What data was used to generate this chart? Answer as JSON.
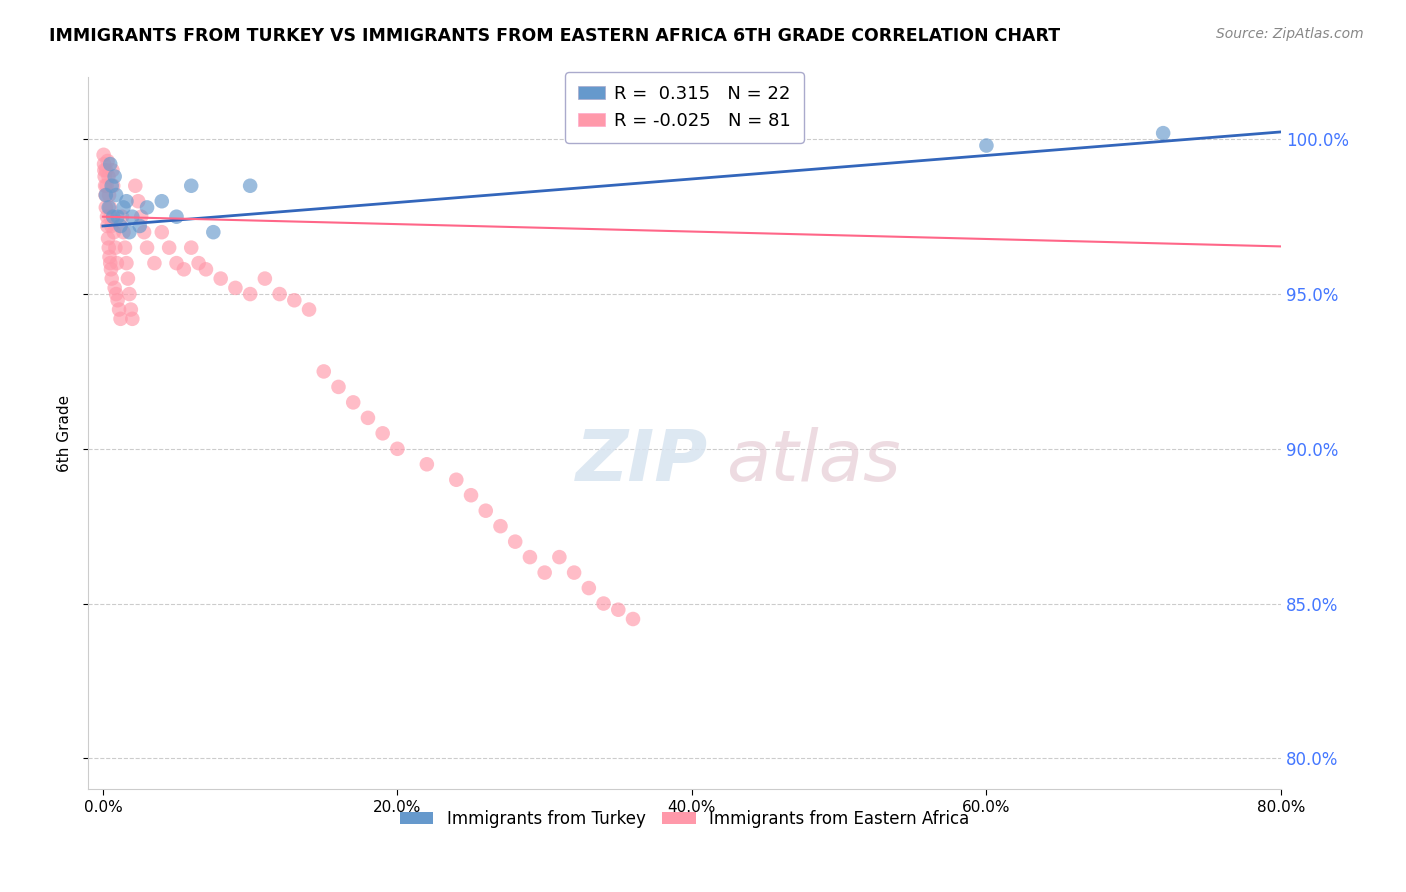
{
  "title": "IMMIGRANTS FROM TURKEY VS IMMIGRANTS FROM EASTERN AFRICA 6TH GRADE CORRELATION CHART",
  "source": "Source: ZipAtlas.com",
  "ylabel": "6th Grade",
  "x_tick_labels": [
    "0.0%",
    "20.0%",
    "40.0%",
    "60.0%",
    "80.0%"
  ],
  "x_tick_values": [
    0.0,
    20.0,
    40.0,
    60.0,
    80.0
  ],
  "y_tick_labels": [
    "80.0%",
    "85.0%",
    "90.0%",
    "95.0%",
    "100.0%"
  ],
  "y_tick_values": [
    80.0,
    85.0,
    90.0,
    95.0,
    100.0
  ],
  "xlim": [
    -1.0,
    80.0
  ],
  "ylim": [
    79.0,
    102.0
  ],
  "blue_color": "#6699CC",
  "pink_color": "#FF99AA",
  "blue_line_color": "#3366BB",
  "pink_line_color": "#FF6688",
  "legend_R_blue": "0.315",
  "legend_N_blue": "22",
  "legend_R_pink": "-0.025",
  "legend_N_pink": "81",
  "legend_label_blue": "Immigrants from Turkey",
  "legend_label_pink": "Immigrants from Eastern Africa",
  "watermark_zip": "ZIP",
  "watermark_atlas": "atlas",
  "blue_x": [
    0.2,
    0.4,
    0.5,
    0.6,
    0.7,
    0.8,
    0.9,
    1.0,
    1.2,
    1.4,
    1.6,
    1.8,
    2.0,
    2.5,
    3.0,
    4.0,
    5.0,
    6.0,
    7.5,
    10.0,
    60.0,
    72.0
  ],
  "blue_y": [
    98.2,
    97.8,
    99.2,
    98.5,
    97.5,
    98.8,
    98.2,
    97.5,
    97.2,
    97.8,
    98.0,
    97.0,
    97.5,
    97.2,
    97.8,
    98.0,
    97.5,
    98.5,
    97.0,
    98.5,
    99.8,
    100.2
  ],
  "pink_x": [
    0.05,
    0.08,
    0.1,
    0.12,
    0.15,
    0.18,
    0.2,
    0.22,
    0.25,
    0.28,
    0.3,
    0.32,
    0.35,
    0.38,
    0.4,
    0.42,
    0.45,
    0.48,
    0.5,
    0.52,
    0.55,
    0.58,
    0.6,
    0.65,
    0.7,
    0.75,
    0.8,
    0.85,
    0.9,
    0.95,
    1.0,
    1.1,
    1.2,
    1.3,
    1.4,
    1.5,
    1.6,
    1.7,
    1.8,
    1.9,
    2.0,
    2.2,
    2.4,
    2.6,
    2.8,
    3.0,
    3.5,
    4.0,
    4.5,
    5.0,
    5.5,
    6.0,
    6.5,
    7.0,
    8.0,
    9.0,
    10.0,
    11.0,
    12.0,
    13.0,
    14.0,
    15.0,
    16.0,
    17.0,
    18.0,
    19.0,
    20.0,
    22.0,
    24.0,
    25.0,
    26.0,
    27.0,
    28.0,
    29.0,
    30.0,
    31.0,
    32.0,
    33.0,
    34.0,
    35.0,
    36.0
  ],
  "pink_y": [
    99.5,
    99.2,
    99.0,
    98.8,
    98.5,
    98.2,
    97.8,
    99.0,
    98.5,
    97.5,
    97.2,
    99.3,
    96.8,
    98.8,
    96.5,
    98.2,
    96.2,
    97.8,
    96.0,
    97.5,
    95.8,
    97.2,
    95.5,
    99.0,
    98.5,
    97.0,
    95.2,
    96.5,
    95.0,
    96.0,
    94.8,
    94.5,
    94.2,
    97.5,
    97.0,
    96.5,
    96.0,
    95.5,
    95.0,
    94.5,
    94.2,
    98.5,
    98.0,
    97.5,
    97.0,
    96.5,
    96.0,
    97.0,
    96.5,
    96.0,
    95.8,
    96.5,
    96.0,
    95.8,
    95.5,
    95.2,
    95.0,
    95.5,
    95.0,
    94.8,
    94.5,
    92.5,
    92.0,
    91.5,
    91.0,
    90.5,
    90.0,
    89.5,
    89.0,
    88.5,
    88.0,
    87.5,
    87.0,
    86.5,
    86.0,
    86.5,
    86.0,
    85.5,
    85.0,
    84.8,
    84.5
  ]
}
